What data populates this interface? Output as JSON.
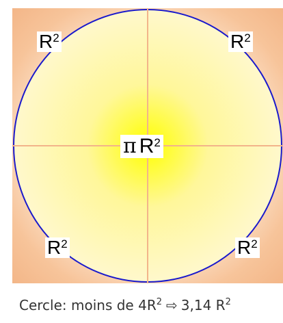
{
  "labels": {
    "top_left": {
      "base": "R",
      "exponent": "2"
    },
    "top_right": {
      "base": "R",
      "exponent": "2"
    },
    "bottom_left": {
      "base": "R",
      "exponent": "2"
    },
    "bottom_right": {
      "base": "R",
      "exponent": "2"
    },
    "center": {
      "symbol": "π",
      "base": "R",
      "exponent": "2"
    }
  },
  "caption": {
    "prefix": "Cercle: moins de 4R",
    "exponent1": "2",
    "arrow": "⇨",
    "value": "3,14 R",
    "exponent2": "2"
  },
  "colors": {
    "circle_stroke": "#1a1acc",
    "cross_lines": "#f2b48a",
    "circle_center": "#ffff00",
    "circle_edge": "#fff8c8",
    "square_corner": "#f3b688"
  }
}
